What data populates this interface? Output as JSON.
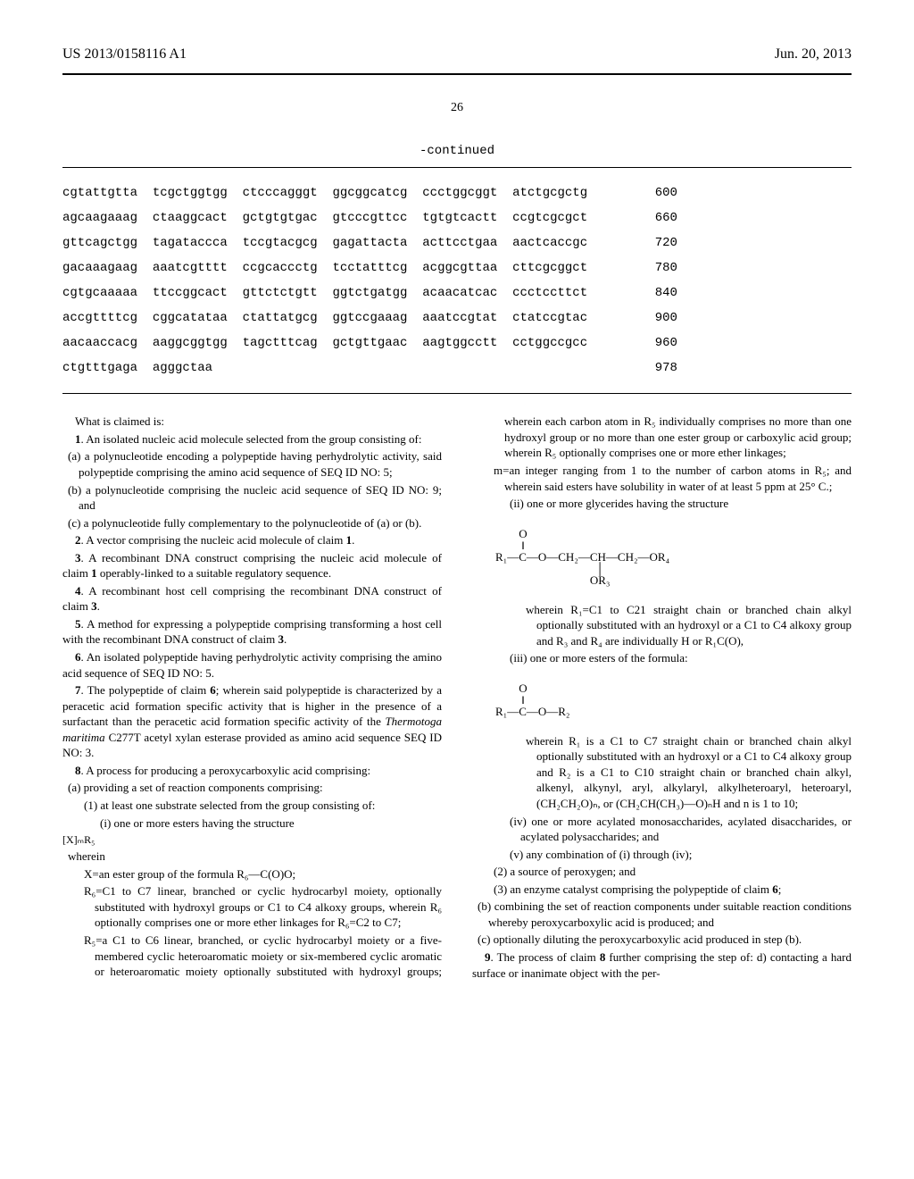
{
  "header": {
    "left": "US 2013/0158116 A1",
    "right": "Jun. 20, 2013"
  },
  "pagenum": "26",
  "seq_continued": "-continued",
  "sequence_rows": [
    {
      "seq": "cgtattgtta  tcgctggtgg  ctcccagggt  ggcggcatcg  ccctggcggt  atctgcgctg",
      "pos": "600"
    },
    {
      "seq": "agcaagaaag  ctaaggcact  gctgtgtgac  gtcccgttcc  tgtgtcactt  ccgtcgcgct",
      "pos": "660"
    },
    {
      "seq": "gttcagctgg  tagataccca  tccgtacgcg  gagattacta  acttcctgaa  aactcaccgc",
      "pos": "720"
    },
    {
      "seq": "gacaaagaag  aaatcgtttt  ccgcaccctg  tcctatttcg  acggcgttaa  cttcgcggct",
      "pos": "780"
    },
    {
      "seq": "cgtgcaaaaa  ttccggcact  gttctctgtt  ggtctgatgg  acaacatcac  ccctccttct",
      "pos": "840"
    },
    {
      "seq": "accgttttcg  cggcatataa  ctattatgcg  ggtccgaaag  aaatccgtat  ctatccgtac",
      "pos": "900"
    },
    {
      "seq": "aacaaccacg  aaggcggtgg  tagctttcag  gctgttgaac  aagtggcctt  cctggccgcc",
      "pos": "960"
    },
    {
      "seq": "ctgtttgaga  agggctaa",
      "pos": "978"
    }
  ],
  "claims": {
    "whatclaimed": "What is claimed is:",
    "c1_lead": "1. An isolated nucleic acid molecule selected from the group consisting of:",
    "c1_a": "(a) a polynucleotide encoding a polypeptide having perhydrolytic activity, said polypeptide comprising the amino acid sequence of SEQ ID NO: 5;",
    "c1_b": "(b) a polynucleotide comprising the nucleic acid sequence of SEQ ID NO: 9; and",
    "c1_c": "(c) a polynucleotide fully complementary to the polynucleotide of (a) or (b).",
    "c2": "2. A vector comprising the nucleic acid molecule of claim 1.",
    "c3": "3. A recombinant DNA construct comprising the nucleic acid molecule of claim 1 operably-linked to a suitable regulatory sequence.",
    "c4": "4. A recombinant host cell comprising the recombinant DNA construct of claim 3.",
    "c5": "5. A method for expressing a polypeptide comprising transforming a host cell with the recombinant DNA construct of claim 3.",
    "c6": "6. An isolated polypeptide having perhydrolytic activity comprising the amino acid sequence of SEQ ID NO: 5.",
    "c7_a": "7. The polypeptide of claim 6; wherein said polypeptide is characterized by a peracetic acid formation specific activity that is higher in the presence of a surfactant than the peracetic acid formation specific activity of the ",
    "c7_it": "Thermotoga maritima",
    "c7_b": " C277T acetyl xylan esterase provided as amino acid sequence SEQ ID NO: 3.",
    "c8_lead": "8. A process for producing a peroxycarboxylic acid comprising:",
    "c8_a": "(a) providing a set of reaction components comprising:",
    "c8_a1": "(1) at least one substrate selected from the group consisting of:",
    "c8_a1_i": "(i) one or more esters having the structure",
    "formula_XmR5": "[X]ₘR₅",
    "wherein_label": "wherein",
    "x_def": "X=an ester group of the formula R₆—C(O)O;",
    "r6_def": "R₆=C1 to C7 linear, branched or cyclic hydrocarbyl moiety, optionally substituted with hydroxyl groups or C1 to C4 alkoxy groups, wherein R₆ optionally comprises one or more ether linkages for R₆=C2 to C7;",
    "r5_def": "R₅=a C1 to C6 linear, branched, or cyclic hydrocarbyl moiety or a five-membered cyclic heteroaromatic moiety or six-membered cyclic aromatic or heteroaromatic moiety optionally substituted with hydroxyl groups; wherein each carbon atom in R₅ individually comprises no more than one hydroxyl group or no more than one ester group or carboxylic acid group; wherein R₅ optionally comprises one or more ether linkages;",
    "m_def": "m=an integer ranging from 1 to the number of carbon atoms in R₅; and wherein said esters have solubility in water of at least 5 ppm at 25° C.;",
    "c8_ii": "(ii) one or more glycerides having the structure",
    "glyceride_desc": "wherein R₁=C1 to C21 straight chain or branched chain alkyl optionally substituted with an hydroxyl or a C1 to C4 alkoxy group and R₃ and R₄ are individually H or R₁C(O),",
    "c8_iii": "(iii) one or more esters of the formula:",
    "ester_desc": "wherein R₁ is a C1 to C7 straight chain or branched chain alkyl optionally substituted with an hydroxyl or a C1 to C4 alkoxy group and R₂ is a C1 to C10 straight chain or branched chain alkyl, alkenyl, alkynyl, aryl, alkylaryl, alkylheteroaryl, heteroaryl, (CH₂CH₂O)ₙ, or (CH₂CH(CH₃)—O)ₙH and n is 1 to 10;",
    "c8_iv": "(iv) one or more acylated monosaccharides, acylated disaccharides, or acylated polysaccharides; and",
    "c8_v": "(v) any combination of (i) through (iv);",
    "c8_2": "(2) a source of peroxygen; and",
    "c8_3": "(3) an enzyme catalyst comprising the polypeptide of claim 6;",
    "c8_b": "(b) combining the set of reaction components under suitable reaction conditions whereby peroxycarboxylic acid is produced; and",
    "c8_c": "(c) optionally diluting the peroxycarboxylic acid produced in step (b).",
    "c9": "9. The process of claim 8 further comprising the step of: d) contacting a hard surface or inanimate object with the per-"
  },
  "structures": {
    "glyceride": {
      "top": "O",
      "bond": "‖",
      "line": "R₁—C—O—CH₂—CH—CH₂—OR₄",
      "pbond": "│",
      "pgroup": "OR₃"
    },
    "ester": {
      "top": "O",
      "bond": "‖",
      "line": "R₁—C—O—R₂"
    }
  }
}
